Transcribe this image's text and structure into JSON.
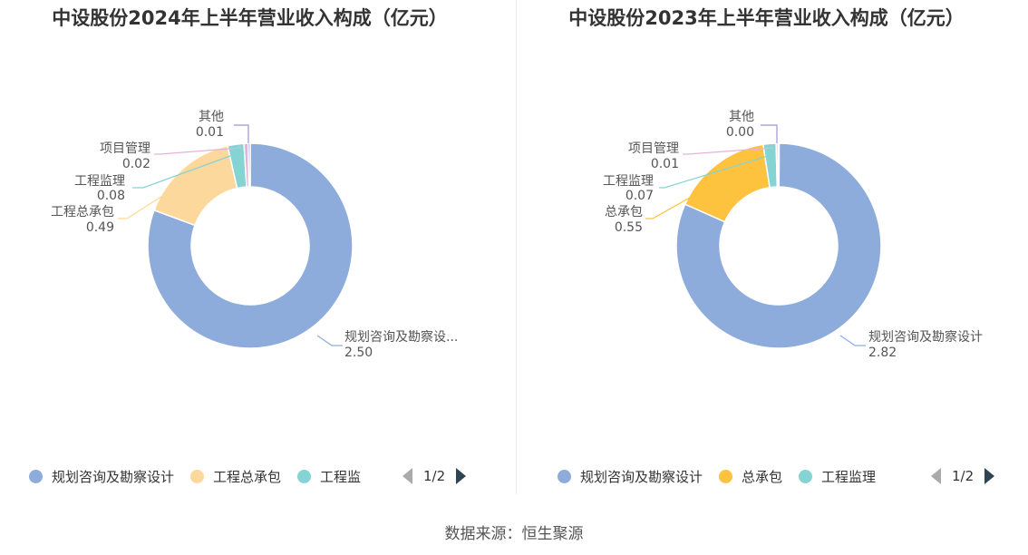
{
  "source": "数据来源：恒生聚源",
  "chart_data": [
    {
      "type": "pie",
      "donut": true,
      "title": "中设股份2024年上半年营业收入构成（亿元）",
      "slices": [
        {
          "label": "规划咨询及勘察设...",
          "value": 2.5,
          "value_label": "2.50",
          "color": "#8eacdb"
        },
        {
          "label": "工程总承包",
          "value": 0.49,
          "value_label": "0.49",
          "color": "#fdd89c"
        },
        {
          "label": "工程监理",
          "value": 0.08,
          "value_label": "0.08",
          "color": "#86d3d3"
        },
        {
          "label": "项目管理",
          "value": 0.02,
          "value_label": "0.02",
          "color": "#e3b2d8"
        },
        {
          "label": "其他",
          "value": 0.01,
          "value_label": "0.01",
          "color": "#a291de"
        }
      ],
      "legend": {
        "items": [
          "规划咨询及勘察设计",
          "工程总承包",
          "工程监"
        ],
        "page": "1/2",
        "placement": "bottom"
      }
    },
    {
      "type": "pie",
      "donut": true,
      "title": "中设股份2023年上半年营业收入构成（亿元）",
      "slices": [
        {
          "label": "规划咨询及勘察设计",
          "value": 2.82,
          "value_label": "2.82",
          "color": "#8eacdb"
        },
        {
          "label": "总承包",
          "value": 0.55,
          "value_label": "0.55",
          "color": "#fdc23e"
        },
        {
          "label": "工程监理",
          "value": 0.07,
          "value_label": "0.07",
          "color": "#86d3d3"
        },
        {
          "label": "项目管理",
          "value": 0.01,
          "value_label": "0.01",
          "color": "#e3b2d8"
        },
        {
          "label": "其他",
          "value": 0.004,
          "value_label": "0.00",
          "color": "#a291de"
        }
      ],
      "legend": {
        "items": [
          "规划咨询及勘察设计",
          "总承包",
          "工程监理"
        ],
        "page": "1/2",
        "placement": "bottom"
      }
    }
  ]
}
